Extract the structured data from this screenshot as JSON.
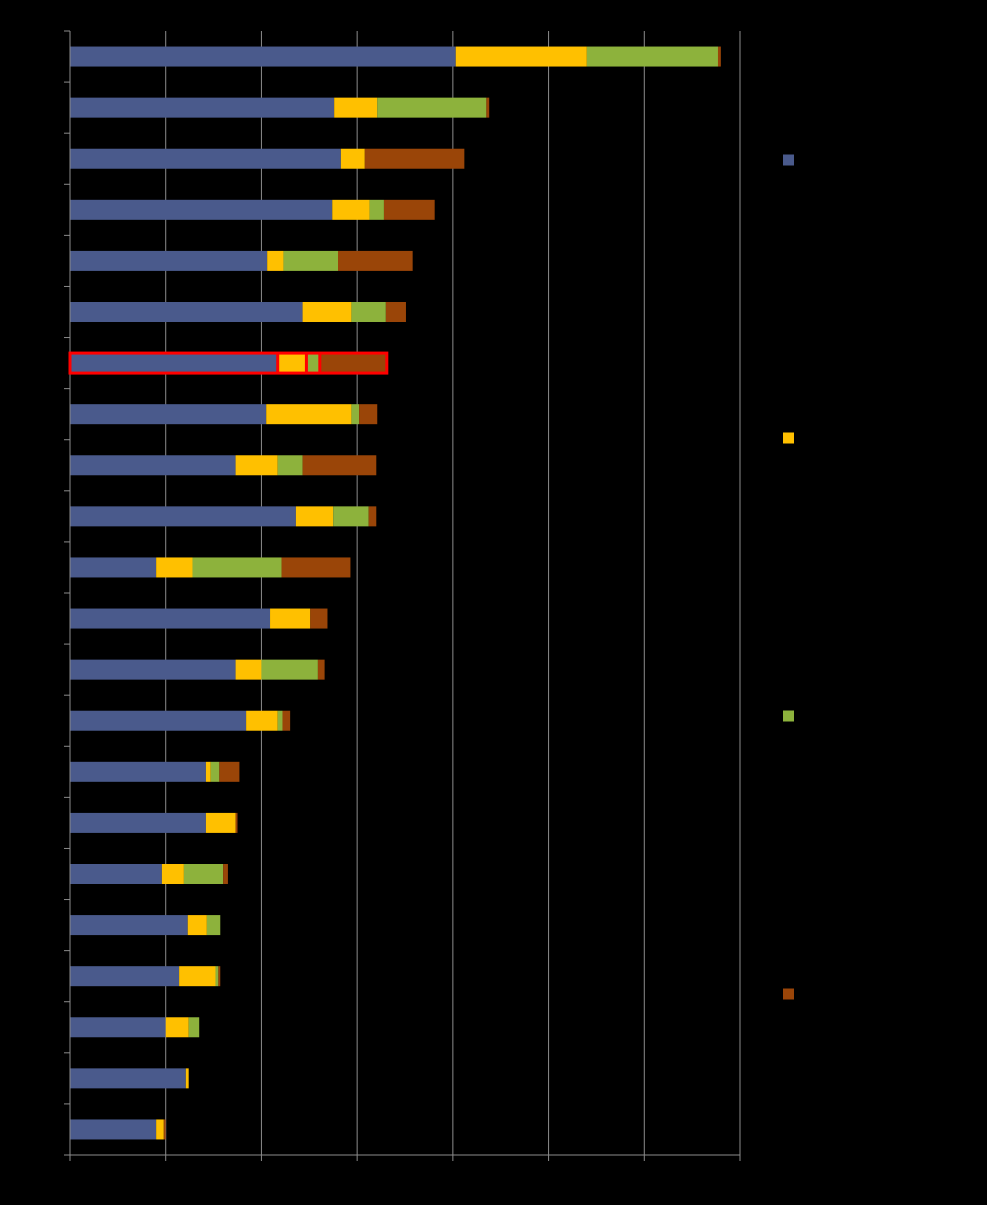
{
  "chart_data": {
    "type": "bar",
    "orientation": "horizontal",
    "stacked": true,
    "title": "",
    "xlabel": "",
    "ylabel": "",
    "grid": true,
    "legend_position": "right",
    "xlim": [
      0,
      7
    ],
    "x_gridlines": [
      0,
      1,
      2,
      3,
      4,
      5,
      6,
      7
    ],
    "category_count": 22,
    "categories": [
      "",
      "",
      "",
      "",
      "",
      "",
      "",
      "",
      "",
      "",
      "",
      "",
      "",
      "",
      "",
      "",
      "",
      "",
      "",
      "",
      "",
      ""
    ],
    "series": [
      {
        "color": "#4A5A8C",
        "values": [
          4.03,
          2.76,
          2.83,
          2.74,
          2.06,
          2.43,
          2.17,
          2.05,
          1.73,
          2.36,
          0.9,
          2.09,
          1.73,
          1.84,
          1.42,
          1.42,
          0.96,
          1.23,
          1.14,
          1.0,
          1.21,
          0.9
        ]
      },
      {
        "color": "#FFC000",
        "values": [
          1.37,
          0.45,
          0.25,
          0.39,
          0.17,
          0.51,
          0.3,
          0.89,
          0.44,
          0.39,
          0.38,
          0.42,
          0.27,
          0.33,
          0.05,
          0.31,
          0.23,
          0.2,
          0.38,
          0.24,
          0.03,
          0.08
        ]
      },
      {
        "color": "#8DB23C",
        "values": [
          1.37,
          1.14,
          0.0,
          0.15,
          0.57,
          0.36,
          0.14,
          0.08,
          0.26,
          0.37,
          0.93,
          0.0,
          0.59,
          0.05,
          0.09,
          0.0,
          0.41,
          0.14,
          0.03,
          0.11,
          0.0,
          0.0
        ]
      },
      {
        "color": "#9A4508",
        "values": [
          0.03,
          0.03,
          1.04,
          0.53,
          0.78,
          0.21,
          0.7,
          0.19,
          0.77,
          0.08,
          0.72,
          0.18,
          0.07,
          0.08,
          0.21,
          0.02,
          0.05,
          0.0,
          0.02,
          0.0,
          0.0,
          0.02
        ]
      }
    ],
    "highlight": {
      "category_index": 6,
      "color": "#FF0000"
    }
  }
}
